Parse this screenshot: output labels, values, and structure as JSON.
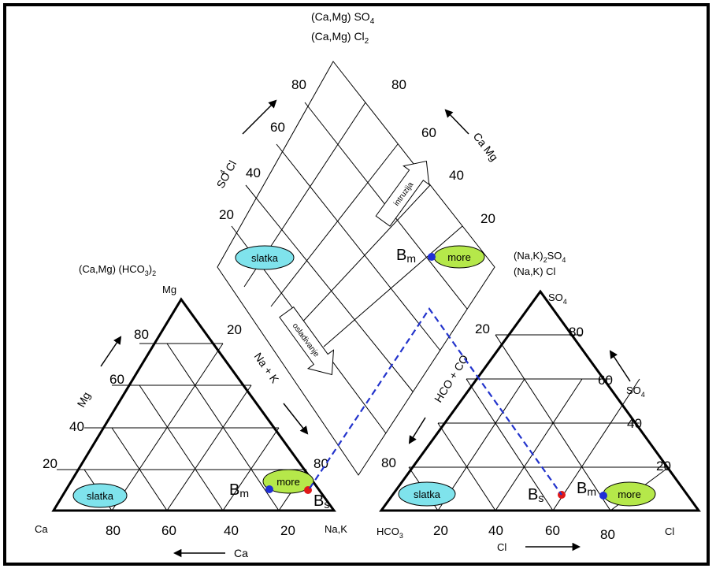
{
  "diamond": {
    "top_label_line1": "(Ca,Mg) SO",
    "top_label_line1_sub": "4",
    "top_label_line2": "(Ca,Mg) Cl",
    "top_label_line2_sub": "2",
    "left_ticks": [
      "80",
      "60",
      "40",
      "20"
    ],
    "right_ticks": [
      "80",
      "60",
      "40",
      "20"
    ],
    "left_axis_label": "SO  Cl",
    "left_axis_label_sub": "4",
    "right_axis_label": "Ca Mg",
    "arrow_intruzija": "intruzija",
    "arrow_osladivanje": "osladivanje"
  },
  "left_triangle": {
    "title": "(Ca,Mg) (HCO",
    "title_sub": "3",
    "title_end": ")",
    "title_end_sub": "2",
    "apex": "Mg",
    "left_corner": "Ca",
    "right_corner": "Na,K",
    "left_ticks": [
      "80",
      "60",
      "40",
      "20"
    ],
    "bottom_ticks": [
      "80",
      "60",
      "40",
      "20"
    ],
    "right_ticks": [
      "20",
      "80"
    ],
    "mg_axis": "Mg",
    "ca_axis": "Ca",
    "nak_axis": "Na + K"
  },
  "right_triangle": {
    "title_line1": "(Na,K)",
    "title_line1_sub": "2",
    "title_line1_end": "SO",
    "title_line1_end_sub": "4",
    "title_line2": "(Na,K) Cl",
    "apex": "SO",
    "apex_sub": "4",
    "left_corner": "HCO",
    "left_corner_sub": "3",
    "right_corner": "Cl",
    "right_ticks": [
      "80",
      "60",
      "40",
      "20"
    ],
    "bottom_ticks": [
      "20",
      "40",
      "60",
      "80"
    ],
    "left_ticks": [
      "20",
      "80"
    ],
    "so4_axis": "SO",
    "so4_axis_sub": "4",
    "cl_axis": "Cl",
    "hco3_axis": "HCO  + CO",
    "hco3_axis_sub1": "3",
    "hco3_axis_sub2": "3"
  },
  "labels": {
    "slatka": "slatka",
    "more": "more",
    "bm": "B",
    "bm_sub": "m",
    "bs": "B",
    "bs_sub": "s"
  },
  "colors": {
    "slatka_fill": "#7fe3ec",
    "more_fill": "#b5e84a",
    "bm_point": "#1f2fd6",
    "bs_point": "#e01818",
    "dashed_line": "#2233cc"
  }
}
